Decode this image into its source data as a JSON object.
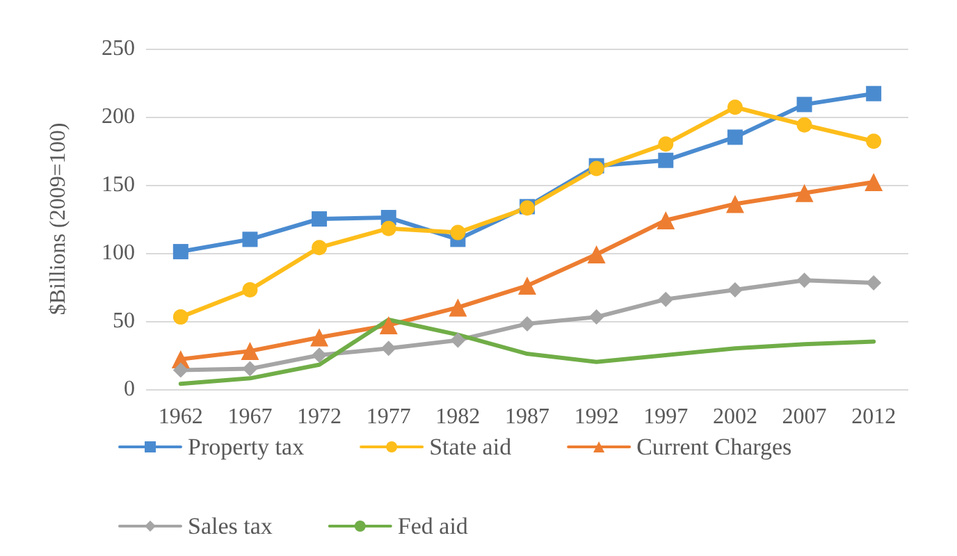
{
  "chart_data": {
    "type": "line",
    "ylabel": "$Billions (2009=100)",
    "categories": [
      "1962",
      "1967",
      "1972",
      "1977",
      "1982",
      "1987",
      "1992",
      "1997",
      "2002",
      "2007",
      "2012"
    ],
    "ylim": [
      0,
      250
    ],
    "yticks": [
      0,
      50,
      100,
      150,
      200,
      250
    ],
    "grid": "y",
    "legend": "bottom",
    "series": [
      {
        "name": "Property tax",
        "color": "#4a8bd0",
        "marker": "square",
        "values": [
          101,
          110,
          125,
          126,
          110,
          134,
          164,
          168,
          185,
          209,
          217
        ]
      },
      {
        "name": "State aid",
        "color": "#fdbd1a",
        "marker": "circle",
        "values": [
          53,
          73,
          104,
          118,
          115,
          133,
          162,
          180,
          207,
          194,
          182
        ]
      },
      {
        "name": "Current Charges",
        "color": "#ed7d31",
        "marker": "triangle",
        "values": [
          22,
          28,
          38,
          47,
          60,
          76,
          99,
          124,
          136,
          144,
          152
        ]
      },
      {
        "name": "Sales tax",
        "color": "#a5a5a5",
        "marker": "diamond",
        "values": [
          14,
          15,
          25,
          30,
          36,
          48,
          53,
          66,
          73,
          80,
          78
        ]
      },
      {
        "name": "Fed aid",
        "color": "#70ad47",
        "marker": "none",
        "values": [
          4,
          8,
          18,
          51,
          40,
          26,
          20,
          25,
          30,
          33,
          35
        ]
      }
    ]
  }
}
